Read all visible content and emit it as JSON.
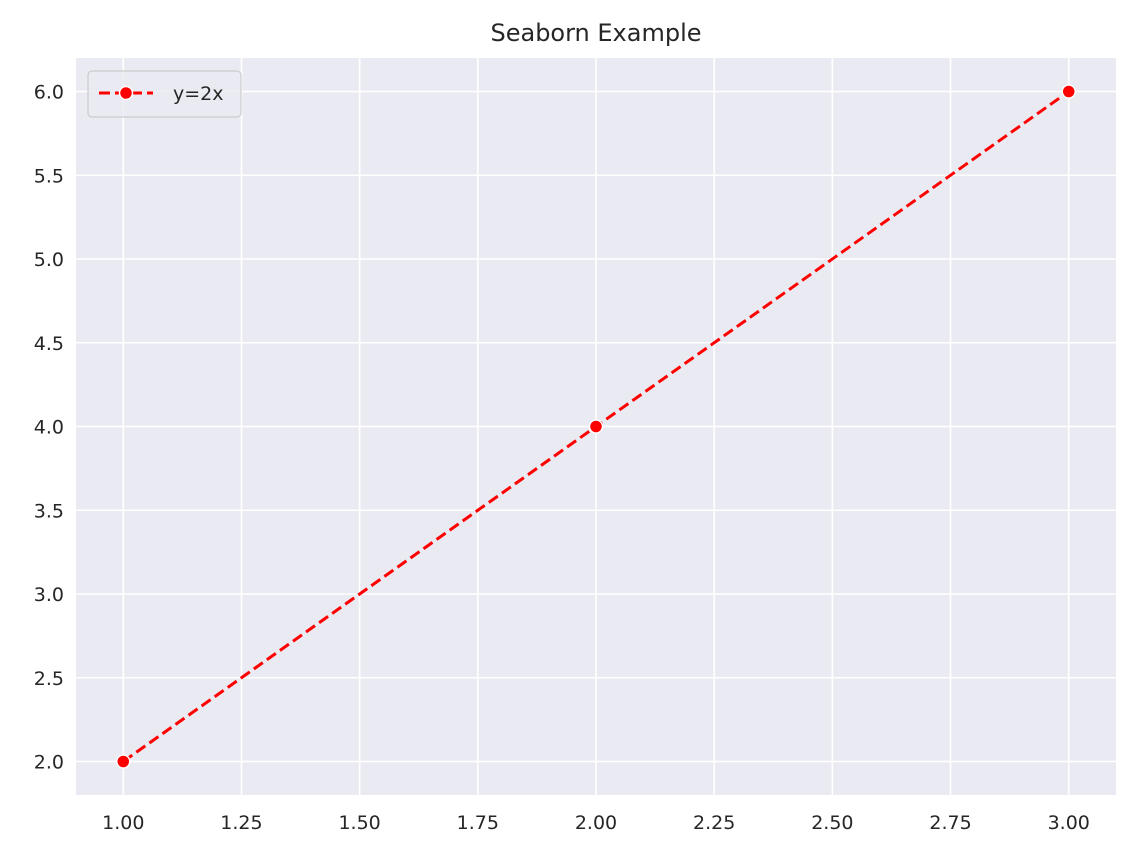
{
  "chart_data": {
    "type": "line",
    "title": "Seaborn Example",
    "xlabel": "",
    "ylabel": "",
    "xlim": [
      0.9,
      3.1
    ],
    "ylim": [
      1.8,
      6.2
    ],
    "x_ticks": [
      "1.00",
      "1.25",
      "1.50",
      "1.75",
      "2.00",
      "2.25",
      "2.50",
      "2.75",
      "3.00"
    ],
    "y_ticks": [
      "2.0",
      "2.5",
      "3.0",
      "3.5",
      "4.0",
      "4.5",
      "5.0",
      "5.5",
      "6.0"
    ],
    "grid": true,
    "legend_position": "top-left",
    "background_color": "#eaeaf2",
    "grid_color": "#ffffff",
    "series": [
      {
        "name": "y=2x",
        "x": [
          1,
          2,
          3
        ],
        "y": [
          2,
          4,
          6
        ],
        "color": "#ff0000",
        "line_style": "dashed",
        "marker": "circle"
      }
    ]
  }
}
